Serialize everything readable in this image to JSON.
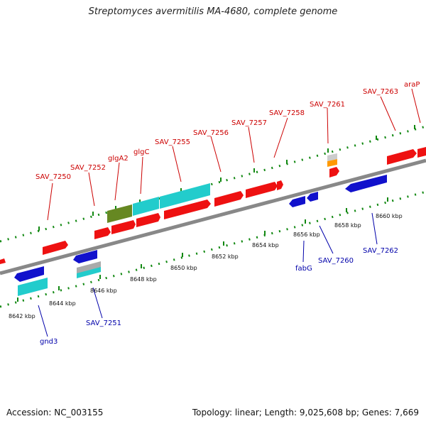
{
  "title": "Streptomyces avermitilis MA-4680, complete genome",
  "footer": {
    "accession": "Accession: NC_003155",
    "summary": "Topology: linear; Length: 9,025,608 bp; Genes: 7,669"
  },
  "colors": {
    "forward": "#ee1111",
    "reverse": "#1111cc",
    "cyan": "#22cccc",
    "olive": "#668822",
    "orange": "#ff9900",
    "gray": "#aaaaaa",
    "backbone": "#888888",
    "tick": "#118811",
    "label_forward": "#cc0000",
    "label_reverse": "#0000aa"
  },
  "scale": {
    "unit": "kbp",
    "labels": [
      "8642 kbp",
      "8644 kbp",
      "8646 kbp",
      "8648 kbp",
      "8650 kbp",
      "8652 kbp",
      "8654 kbp",
      "8656 kbp",
      "8658 kbp",
      "8660 kbp"
    ]
  },
  "forward_labels": [
    "SAV_7250",
    "SAV_7252",
    "glgA2",
    "glgC",
    "SAV_7255",
    "SAV_7256",
    "SAV_7257",
    "SAV_7258",
    "SAV_7261",
    "SAV_7263",
    "araP"
  ],
  "reverse_labels": [
    "gnd3",
    "SAV_7251",
    "fabG",
    "SAV_7260",
    "SAV_7262"
  ]
}
